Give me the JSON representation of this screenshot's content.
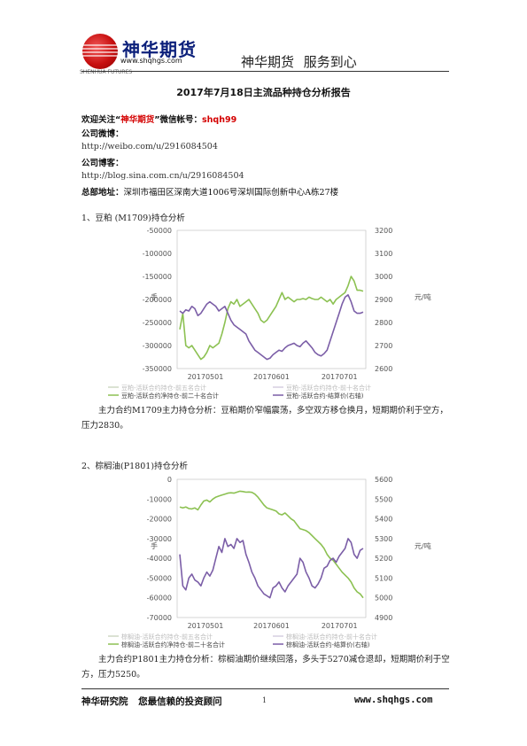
{
  "header": {
    "logo_text": "神华期货",
    "logo_url": "www.shqhgs.com",
    "logo_sub": "SHENHUA FUTURES",
    "slogan": "神华期货   服务到心"
  },
  "title": "2017年7月18日主流品种持仓分析报告",
  "contact": {
    "wechat_prefix": "欢迎关注“",
    "wechat_brand": "神华期货",
    "wechat_mid": "”微信帐号：",
    "wechat_id": "shqh99",
    "weibo_label": "公司微博：",
    "weibo_url": "http://weibo.com/u/2916084504",
    "blog_label": "公司博客：",
    "blog_url": "http://blog.sina.com.cn/u/2916084504",
    "address_label": "总部地址：",
    "address": "深圳市福田区深南大道1006号深圳国际创新中心A栋27楼"
  },
  "sections": [
    {
      "heading": "1、豆粕 (M1709)持仓分析",
      "paragraph": "主力合约M1709主力持仓分析：豆粕期价窄幅震荡，多空双方移仓换月，短期期价利于空方，压力2830。"
    },
    {
      "heading": "2、棕榈油(P1801)持仓分析",
      "paragraph": "主力合约P1801主力持仓分析：棕榈油期价继续回落，多头于5270减仓退却，短期期价利于空方，压力5250。"
    }
  ],
  "chart_data": [
    {
      "type": "line",
      "x_ticks": [
        "20170501",
        "20170601",
        "20170701"
      ],
      "ylim_left": [
        -350000,
        -50000
      ],
      "y_ticks_left": [
        "-50000",
        "-100000",
        "-150000",
        "-200000",
        "-250000",
        "-300000",
        "-350000"
      ],
      "ylim_right": [
        2600,
        3200
      ],
      "y_ticks_right": [
        "3200",
        "3100",
        "3000",
        "2900",
        "2800",
        "2700",
        "2600"
      ],
      "ylabel_left": "手",
      "ylabel_right": "元/吨",
      "legend": [
        "豆粕-活跃合约持仓-前五名合计",
        "豆粕-活跃合约持仓-前十名合计",
        "豆粕-活跃合约净持仓-前二十名合计",
        "豆粕-活跃合约-结算价(右轴)"
      ],
      "series": [
        {
          "color": "#8cc152",
          "axis": "left",
          "values": [
            -265000,
            -230000,
            -300000,
            -305000,
            -300000,
            -310000,
            -320000,
            -330000,
            -325000,
            -315000,
            -300000,
            -305000,
            -300000,
            -295000,
            -275000,
            -250000,
            -220000,
            -205000,
            -210000,
            -200000,
            -215000,
            -210000,
            -205000,
            -200000,
            -210000,
            -220000,
            -230000,
            -245000,
            -250000,
            -245000,
            -235000,
            -225000,
            -215000,
            -200000,
            -185000,
            -200000,
            -195000,
            -200000,
            -205000,
            -200000,
            -200000,
            -198000,
            -200000,
            -195000,
            -198000,
            -200000,
            -200000,
            -195000,
            -200000,
            -205000,
            -200000,
            -210000,
            -200000,
            -195000,
            -190000,
            -185000,
            -170000,
            -150000,
            -160000,
            -180000,
            -180000,
            -182000
          ]
        },
        {
          "color": "#7b5ea7",
          "axis": "right",
          "values": [
            2850,
            2840,
            2855,
            2850,
            2870,
            2860,
            2830,
            2840,
            2860,
            2880,
            2890,
            2880,
            2870,
            2850,
            2860,
            2870,
            2840,
            2810,
            2790,
            2780,
            2770,
            2760,
            2750,
            2720,
            2700,
            2680,
            2670,
            2660,
            2650,
            2640,
            2645,
            2660,
            2670,
            2680,
            2675,
            2690,
            2700,
            2705,
            2710,
            2700,
            2695,
            2710,
            2720,
            2705,
            2690,
            2670,
            2660,
            2655,
            2665,
            2680,
            2720,
            2760,
            2800,
            2840,
            2880,
            2910,
            2920,
            2890,
            2850,
            2840,
            2840,
            2845
          ]
        }
      ]
    },
    {
      "type": "line",
      "x_ticks": [
        "20170501",
        "20170601",
        "20170701"
      ],
      "ylim_left": [
        -70000,
        0
      ],
      "y_ticks_left": [
        "0",
        "-10000",
        "-20000",
        "-30000",
        "-40000",
        "-50000",
        "-60000",
        "-70000"
      ],
      "ylim_right": [
        4900,
        5600
      ],
      "y_ticks_right": [
        "5600",
        "5500",
        "5400",
        "5300",
        "5200",
        "5100",
        "5000",
        "4900"
      ],
      "ylabel_left": "手",
      "ylabel_right": "元/吨",
      "legend": [
        "棕榈油-活跃合约持仓-前五名合计",
        "棕榈油-活跃合约持仓-前十名合计",
        "棕榈油-活跃合约净持仓-前二十名合计",
        "棕榈油-活跃合约-结算价(右轴)"
      ],
      "series": [
        {
          "color": "#8cc152",
          "axis": "left",
          "values": [
            -14000,
            -14500,
            -14000,
            -14800,
            -15000,
            -14500,
            -15500,
            -13000,
            -11000,
            -10500,
            -11500,
            -10000,
            -9000,
            -8500,
            -8000,
            -7500,
            -7000,
            -6800,
            -7000,
            -6500,
            -6000,
            -6200,
            -6500,
            -6400,
            -6600,
            -7500,
            -9000,
            -11000,
            -13000,
            -14500,
            -15000,
            -15500,
            -16000,
            -17500,
            -18000,
            -17000,
            -18500,
            -20000,
            -21000,
            -23000,
            -25000,
            -25500,
            -26000,
            -27000,
            -28500,
            -30000,
            -31500,
            -33000,
            -35000,
            -38000,
            -40000,
            -41000,
            -43000,
            -45000,
            -47000,
            -48500,
            -50000,
            -52000,
            -55000,
            -57000,
            -58000,
            -60000
          ]
        },
        {
          "color": "#7b5ea7",
          "axis": "right",
          "values": [
            5220,
            5060,
            5040,
            5100,
            5120,
            5090,
            5080,
            5060,
            5100,
            5130,
            5110,
            5140,
            5200,
            5260,
            5230,
            5300,
            5260,
            5270,
            5250,
            5300,
            5280,
            5290,
            5220,
            5180,
            5130,
            5100,
            5060,
            5040,
            5020,
            5010,
            5000,
            5050,
            5060,
            5080,
            5050,
            5030,
            5060,
            5080,
            5100,
            5120,
            5200,
            5180,
            5130,
            5100,
            5060,
            5050,
            5070,
            5100,
            5150,
            5160,
            5190,
            5200,
            5180,
            5210,
            5230,
            5250,
            5300,
            5280,
            5220,
            5200,
            5240,
            5250
          ]
        }
      ]
    }
  ],
  "footer": {
    "left": "神华研究院   您最信赖的投资顾问",
    "page": "1",
    "right": "www.shqhgs.com"
  }
}
